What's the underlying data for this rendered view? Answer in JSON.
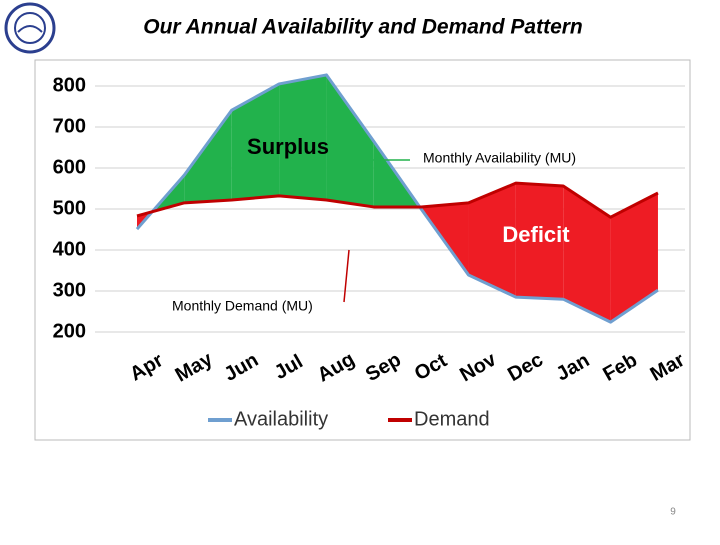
{
  "chart_data": {
    "type": "line",
    "title": "Our  Annual Availability and Demand Pattern",
    "categories": [
      "Apr",
      "May",
      "Jun",
      "Jul",
      "Aug",
      "Sep",
      "Oct",
      "Nov",
      "Dec",
      "Jan",
      "Feb",
      "Mar"
    ],
    "series": [
      {
        "name": "Availability",
        "color": "#6f9fd0",
        "values": [
          451,
          583,
          741,
          805,
          827,
          665,
          500,
          339,
          285,
          280,
          224,
          302
        ]
      },
      {
        "name": "Demand",
        "color": "#c00000",
        "values": [
          483,
          515,
          522,
          532,
          522,
          505,
          505,
          515,
          563,
          556,
          480,
          539
        ]
      }
    ],
    "surplus_color": "#22b24c",
    "deficit_color": "#ee1c24",
    "ylim": [
      200,
      840
    ],
    "yticks": [
      200,
      300,
      400,
      500,
      600,
      700,
      800
    ],
    "grid": true,
    "annotations": {
      "surplus": "Surplus",
      "deficit": "Deficit",
      "availability": "Monthly Availability (MU)",
      "demand": "Monthly Demand (MU)"
    }
  },
  "page_number": 9
}
